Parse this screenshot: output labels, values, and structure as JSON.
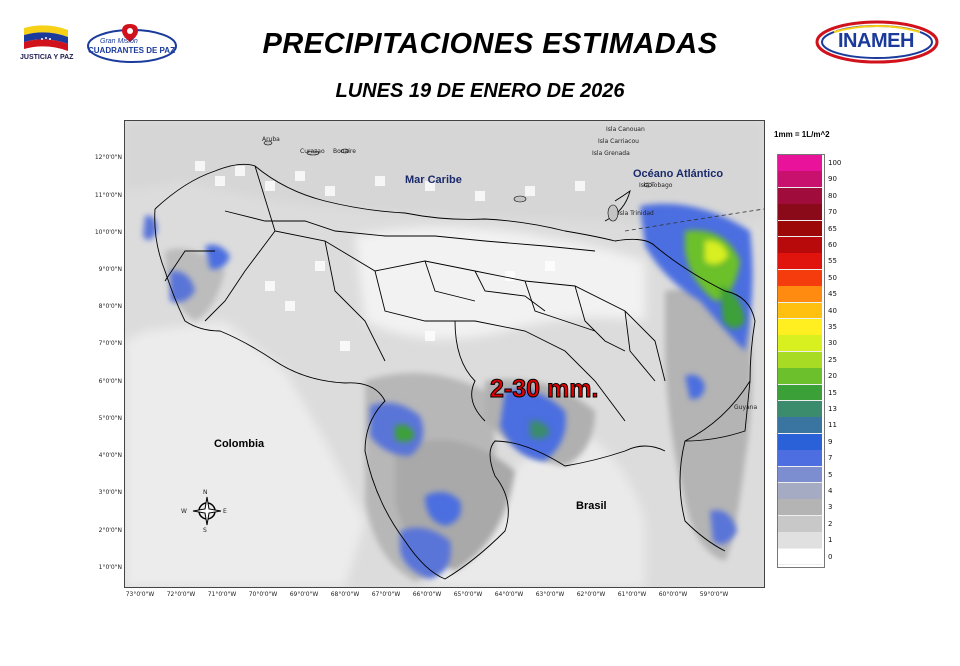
{
  "header": {
    "title": "PRECIPITACIONES ESTIMADAS",
    "subtitle": "LUNES 19 DE ENERO DE 2026",
    "logo_left_text": "JUSTICIA Y PAZ",
    "logo_mid_line1": "Gran Misión",
    "logo_mid_line2": "CUADRANTES DE PAZ",
    "logo_right_text": "INAMEH"
  },
  "map": {
    "y_ticks": [
      "12°0'0\"N",
      "11°0'0\"N",
      "10°0'0\"N",
      "9°0'0\"N",
      "8°0'0\"N",
      "7°0'0\"N",
      "6°0'0\"N",
      "5°0'0\"N",
      "4°0'0\"N",
      "3°0'0\"N",
      "2°0'0\"N",
      "1°0'0\"N"
    ],
    "x_ticks": [
      "73°0'0\"W",
      "72°0'0\"W",
      "71°0'0\"W",
      "70°0'0\"W",
      "69°0'0\"W",
      "68°0'0\"W",
      "67°0'0\"W",
      "66°0'0\"W",
      "65°0'0\"W",
      "64°0'0\"W",
      "63°0'0\"W",
      "62°0'0\"W",
      "61°0'0\"W",
      "60°0'0\"W",
      "59°0'0\"W"
    ],
    "labels": {
      "mar_caribe": "Mar Caribe",
      "oceano": "Océano Atlántico",
      "colombia": "Colombia",
      "brasil": "Brasil",
      "guyana": "Guyana",
      "aruba": "Aruba",
      "curazao": "Curazao",
      "bonaire": "Bonaire",
      "isla_canouan": "Isla Canouan",
      "isla_carriacou": "Isla Carriacou",
      "isla_grenada": "Isla Grenada",
      "isla_tobago": "Isla Tobago",
      "isla_trinidad": "Isla Trinidad"
    },
    "annotation": "2-30 mm.",
    "compass": {
      "n": "N",
      "s": "S",
      "e": "E",
      "w": "W"
    }
  },
  "legend": {
    "title": "1mm = 1L/m^2",
    "levels": [
      {
        "label": "100",
        "color": "#e8129b"
      },
      {
        "label": "90",
        "color": "#c8106f"
      },
      {
        "label": "80",
        "color": "#a00c3c"
      },
      {
        "label": "70",
        "color": "#8a0a1a"
      },
      {
        "label": "65",
        "color": "#9c0808"
      },
      {
        "label": "60",
        "color": "#b80a0a"
      },
      {
        "label": "55",
        "color": "#e0140c"
      },
      {
        "label": "50",
        "color": "#f43c0c"
      },
      {
        "label": "45",
        "color": "#ff8c10"
      },
      {
        "label": "40",
        "color": "#ffc010"
      },
      {
        "label": "35",
        "color": "#ffee20"
      },
      {
        "label": "30",
        "color": "#d8f020"
      },
      {
        "label": "25",
        "color": "#a8dc24"
      },
      {
        "label": "20",
        "color": "#6cc02c"
      },
      {
        "label": "15",
        "color": "#3ca038"
      },
      {
        "label": "13",
        "color": "#3a8c6c"
      },
      {
        "label": "11",
        "color": "#3a74a0"
      },
      {
        "label": "9",
        "color": "#2a60d8"
      },
      {
        "label": "7",
        "color": "#4c6ee0"
      },
      {
        "label": "5",
        "color": "#7c8ed0"
      },
      {
        "label": "4",
        "color": "#a6abc4"
      },
      {
        "label": "3",
        "color": "#b4b4b4"
      },
      {
        "label": "2",
        "color": "#c8c8c8"
      },
      {
        "label": "1",
        "color": "#e0e0e0"
      },
      {
        "label": "0",
        "color": "#ffffff"
      }
    ]
  }
}
